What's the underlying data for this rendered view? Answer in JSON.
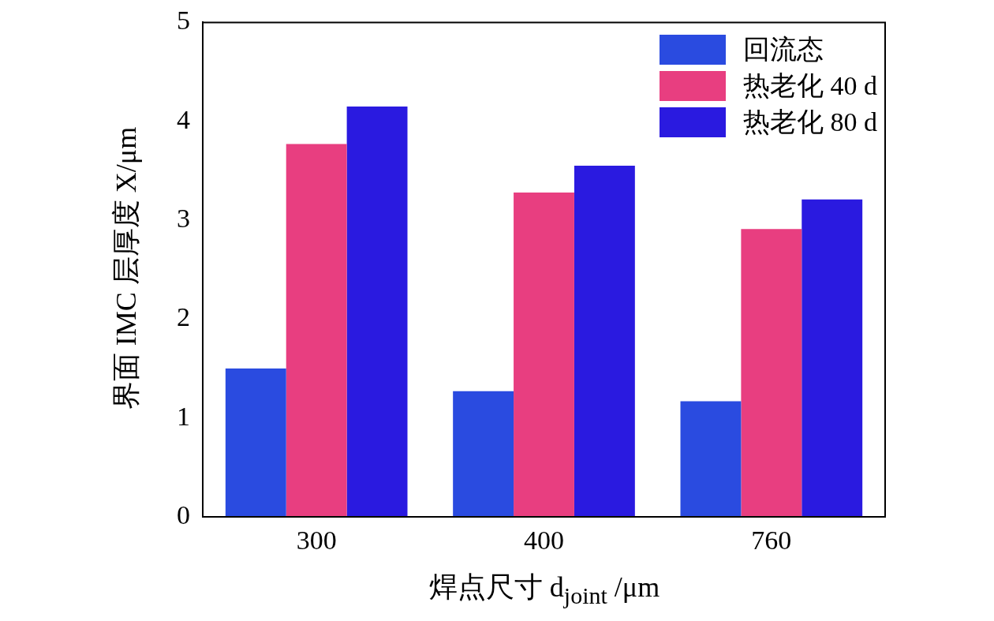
{
  "chart_data": {
    "type": "bar",
    "xlabel": "焊点尺寸 d$_{joint}$ /μm",
    "ylabel": "界面 IMC 层厚度 X/μm",
    "categories": [
      "300",
      "400",
      "760"
    ],
    "series": [
      {
        "name": "回流态",
        "color": "#2a4be0",
        "values": [
          1.5,
          1.27,
          1.17
        ]
      },
      {
        "name": "热老化 40 d",
        "color": "#e83e80",
        "values": [
          3.77,
          3.28,
          2.91
        ]
      },
      {
        "name": "热老化 80 d",
        "color": "#2a1ae0",
        "values": [
          4.15,
          3.55,
          3.21
        ]
      }
    ],
    "ylim": [
      0,
      5
    ],
    "yticks": [
      0,
      1,
      2,
      3,
      4,
      5
    ],
    "grid": false,
    "legend": "top right"
  }
}
